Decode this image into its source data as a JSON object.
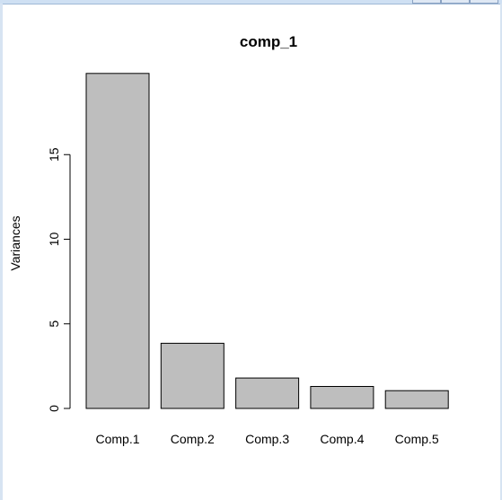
{
  "chart_data": {
    "type": "bar",
    "title": "comp_1",
    "ylabel": "Variances",
    "xlabel": "",
    "categories": [
      "Comp.1",
      "Comp.2",
      "Comp.3",
      "Comp.4",
      "Comp.5"
    ],
    "values": [
      19.8,
      3.85,
      1.8,
      1.3,
      1.05
    ],
    "ylim": [
      0,
      20
    ],
    "yticks": [
      0,
      5,
      10,
      15
    ],
    "ytick_labels": [
      "0",
      "5",
      "10",
      "15"
    ],
    "bar_color": "#bebebe",
    "bar_border_color": "#000000",
    "grid": false
  }
}
